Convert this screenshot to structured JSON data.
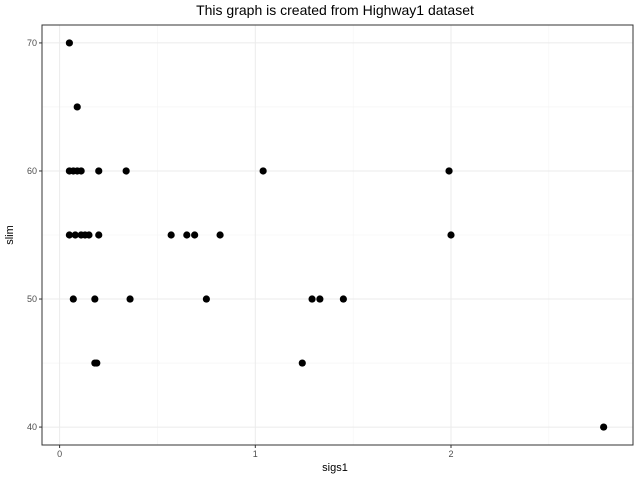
{
  "chart_data": {
    "type": "scatter",
    "title": "This graph is created from Highway1 dataset",
    "xlabel": "sigs1",
    "ylabel": "slim",
    "xlim": [
      -0.09,
      2.93
    ],
    "ylim": [
      38.6,
      71.4
    ],
    "xticks": [
      0,
      1,
      2
    ],
    "yticks": [
      40,
      50,
      60,
      70
    ],
    "grid": true,
    "point_color": "#000000",
    "points": [
      {
        "x": 0.05,
        "y": 70
      },
      {
        "x": 0.09,
        "y": 65
      },
      {
        "x": 0.05,
        "y": 60
      },
      {
        "x": 0.07,
        "y": 60
      },
      {
        "x": 0.09,
        "y": 60
      },
      {
        "x": 0.11,
        "y": 60
      },
      {
        "x": 0.2,
        "y": 60
      },
      {
        "x": 0.34,
        "y": 60
      },
      {
        "x": 1.04,
        "y": 60
      },
      {
        "x": 1.99,
        "y": 60
      },
      {
        "x": 0.05,
        "y": 55
      },
      {
        "x": 0.08,
        "y": 55
      },
      {
        "x": 0.11,
        "y": 55
      },
      {
        "x": 0.13,
        "y": 55
      },
      {
        "x": 0.15,
        "y": 55
      },
      {
        "x": 0.2,
        "y": 55
      },
      {
        "x": 0.57,
        "y": 55
      },
      {
        "x": 0.65,
        "y": 55
      },
      {
        "x": 0.69,
        "y": 55
      },
      {
        "x": 0.82,
        "y": 55
      },
      {
        "x": 2.0,
        "y": 55
      },
      {
        "x": 0.07,
        "y": 50
      },
      {
        "x": 0.18,
        "y": 50
      },
      {
        "x": 0.36,
        "y": 50
      },
      {
        "x": 0.75,
        "y": 50
      },
      {
        "x": 1.29,
        "y": 50
      },
      {
        "x": 1.33,
        "y": 50
      },
      {
        "x": 1.45,
        "y": 50
      },
      {
        "x": 0.18,
        "y": 45
      },
      {
        "x": 0.19,
        "y": 45
      },
      {
        "x": 1.24,
        "y": 45
      },
      {
        "x": 2.78,
        "y": 40
      }
    ]
  }
}
